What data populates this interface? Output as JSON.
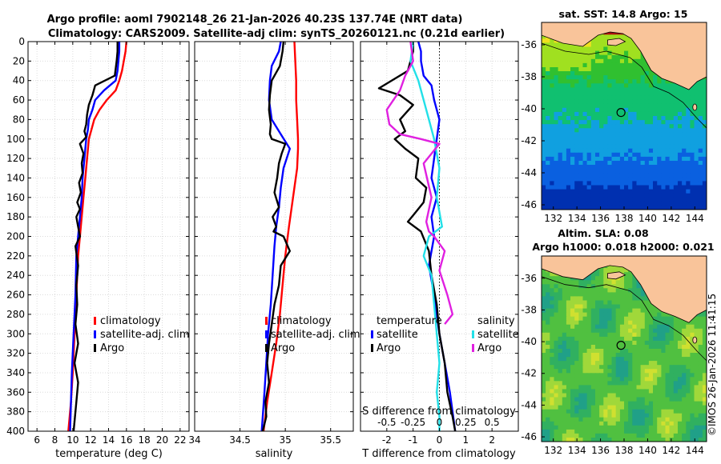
{
  "figure": {
    "title_line1": "Argo profile: aoml 7902148_26 21-Jan-2026 40.23S 137.74E (NRT data)",
    "title_line2": "Climatology: CARS2009. Satellite-adj clim: synTS_20260121.nc (0.21d earlier)",
    "credit": "©IMOS 26-Jan-2026 11:41:15"
  },
  "colors": {
    "climatology": "#ff0000",
    "satellite": "#0000ff",
    "argo": "#000000",
    "sat_salinity": "#22e0e8",
    "argo_salinity": "#e020e0",
    "land": "#f9c49a"
  },
  "chart_data": [
    {
      "id": "temperature",
      "type": "line",
      "xlabel": "temperature (deg C)",
      "xlim": [
        5,
        23
      ],
      "xticks": [
        6,
        8,
        10,
        12,
        14,
        16,
        18,
        20,
        22
      ],
      "ylim": [
        0,
        400
      ],
      "yticks": [
        0,
        20,
        40,
        60,
        80,
        100,
        120,
        140,
        160,
        180,
        200,
        220,
        240,
        260,
        280,
        300,
        320,
        340,
        360,
        380,
        400
      ],
      "legend": [
        "climatology",
        "satellite-adj. clim",
        "Argo"
      ],
      "series": [
        {
          "name": "climatology",
          "color": "#ff0000",
          "x": [
            16.0,
            15.9,
            15.7,
            15.5,
            15.2,
            14.8,
            13.8,
            13.0,
            12.4,
            12.1,
            11.8,
            11.6,
            11.4,
            11.2,
            11.0,
            10.8,
            10.6,
            10.4,
            10.2,
            10.0,
            9.8,
            9.5
          ],
          "depth": [
            0,
            10,
            20,
            30,
            40,
            50,
            60,
            70,
            80,
            90,
            100,
            120,
            140,
            160,
            180,
            200,
            220,
            260,
            300,
            340,
            370,
            400
          ]
        },
        {
          "name": "satellite-adj. clim",
          "color": "#0000ff",
          "x": [
            15.2,
            15.2,
            15.1,
            15.0,
            14.8,
            13.5,
            12.5,
            12.2,
            11.8,
            11.7,
            11.5,
            11.3,
            11.1,
            11.0,
            10.8,
            10.6,
            10.4,
            10.3,
            10.1,
            9.9,
            9.7
          ],
          "depth": [
            0,
            10,
            20,
            30,
            40,
            50,
            60,
            70,
            80,
            90,
            100,
            120,
            140,
            160,
            180,
            200,
            220,
            260,
            300,
            340,
            400
          ]
        },
        {
          "name": "Argo",
          "color": "#000000",
          "x": [
            15.0,
            15.0,
            14.9,
            14.7,
            12.5,
            12.2,
            11.8,
            11.6,
            11.5,
            11.3,
            11.5,
            10.8,
            11.2,
            11.0,
            11.1,
            10.7,
            10.9,
            10.5,
            10.8,
            10.4,
            10.6,
            10.8,
            10.3,
            10.6,
            10.4,
            10.5,
            10.3,
            10.6,
            10.2,
            10.6,
            10.4,
            10.1
          ],
          "depth": [
            0,
            10,
            20,
            35,
            45,
            55,
            65,
            75,
            85,
            92,
            98,
            105,
            115,
            125,
            135,
            145,
            155,
            165,
            172,
            180,
            190,
            200,
            210,
            230,
            250,
            270,
            290,
            310,
            330,
            350,
            370,
            400
          ]
        }
      ]
    },
    {
      "id": "salinity",
      "type": "line",
      "xlabel": "salinity",
      "xlim": [
        34,
        35.75
      ],
      "xticks": [
        34,
        34.5,
        35,
        35.5
      ],
      "ylim": [
        0,
        400
      ],
      "legend": [
        "climatology",
        "satellite-adj. clim",
        "Argo"
      ],
      "series": [
        {
          "name": "climatology",
          "color": "#ff0000",
          "x": [
            35.1,
            35.11,
            35.12,
            35.12,
            35.13,
            35.14,
            35.14,
            35.13,
            35.1,
            35.07,
            35.04,
            35.0,
            34.97,
            34.94,
            34.9,
            34.85,
            34.8,
            34.76
          ],
          "depth": [
            0,
            20,
            40,
            60,
            80,
            100,
            110,
            130,
            150,
            170,
            190,
            220,
            250,
            280,
            310,
            340,
            370,
            400
          ]
        },
        {
          "name": "satellite-adj. clim",
          "color": "#0000ff",
          "x": [
            34.95,
            34.93,
            34.85,
            34.83,
            34.82,
            34.85,
            34.95,
            35.05,
            34.98,
            34.95,
            34.93,
            34.9,
            34.88,
            34.86,
            34.84,
            34.81,
            34.79,
            34.77,
            34.74
          ],
          "depth": [
            0,
            10,
            25,
            40,
            60,
            80,
            95,
            110,
            130,
            150,
            170,
            190,
            210,
            240,
            270,
            300,
            330,
            360,
            400
          ]
        },
        {
          "name": "Argo",
          "color": "#000000",
          "x": [
            34.98,
            34.97,
            34.94,
            34.85,
            34.83,
            34.82,
            34.84,
            34.83,
            34.85,
            35.0,
            34.96,
            34.93,
            34.91,
            34.88,
            34.93,
            34.86,
            34.9,
            34.87,
            34.98,
            35.05,
            34.95,
            34.93,
            34.88,
            34.85,
            34.82,
            34.8,
            34.82,
            34.78,
            34.79,
            34.75
          ],
          "depth": [
            0,
            10,
            25,
            40,
            55,
            70,
            85,
            95,
            100,
            105,
            115,
            125,
            140,
            155,
            170,
            180,
            190,
            195,
            200,
            215,
            230,
            250,
            270,
            290,
            310,
            330,
            350,
            370,
            385,
            400
          ]
        }
      ]
    },
    {
      "id": "difference",
      "type": "line",
      "xlabel": "T difference from climatology",
      "xlabel_top": "S difference from climatology",
      "xlim": [
        -3,
        3
      ],
      "xticks": [
        -2,
        -1,
        0,
        1,
        2
      ],
      "xticks_top": [
        -0.5,
        -0.25,
        0,
        0.25,
        0.5
      ],
      "ylim": [
        0,
        400
      ],
      "legend_temperature": {
        "title": "temperature",
        "items": [
          "satellite",
          "Argo"
        ]
      },
      "legend_salinity": {
        "title": "salinity",
        "items": [
          "satellite",
          "Argo"
        ]
      },
      "series": [
        {
          "name": "T satellite",
          "color": "#0000ff",
          "x": [
            -0.8,
            -0.7,
            -0.7,
            -0.6,
            -0.3,
            -0.2,
            0.0,
            -0.1,
            -0.2,
            -0.3,
            -0.1,
            -0.3,
            -0.2,
            -0.4,
            -0.2,
            0.0,
            0.2,
            0.4,
            0.5,
            0.6
          ],
          "depth": [
            0,
            10,
            20,
            35,
            45,
            60,
            80,
            100,
            120,
            140,
            160,
            180,
            200,
            230,
            260,
            300,
            330,
            360,
            380,
            400
          ]
        },
        {
          "name": "T Argo",
          "color": "#000000",
          "x": [
            -1.0,
            -1.0,
            -1.2,
            -2.3,
            -1.5,
            -1.0,
            -1.5,
            -1.3,
            -1.7,
            -1.3,
            -0.8,
            -0.9,
            -0.5,
            -0.6,
            -0.9,
            -1.2,
            -0.7,
            -0.4,
            -0.3,
            -0.1,
            0.0,
            0.2,
            0.3,
            0.5,
            0.6
          ],
          "depth": [
            0,
            10,
            30,
            48,
            55,
            65,
            80,
            92,
            100,
            110,
            120,
            140,
            150,
            165,
            175,
            185,
            195,
            215,
            240,
            270,
            300,
            330,
            360,
            385,
            400
          ]
        },
        {
          "name": "S satellite",
          "color": "#22e0e8",
          "x": [
            -1.0,
            -1.1,
            -0.8,
            -0.6,
            -0.4,
            -0.2,
            0.0,
            -0.1,
            0.1,
            -0.4,
            -0.6,
            -0.3,
            -0.2,
            -0.1,
            0.0,
            -0.1,
            0.0,
            0.0
          ],
          "depth": [
            0,
            20,
            40,
            60,
            80,
            100,
            130,
            160,
            190,
            200,
            220,
            240,
            270,
            300,
            330,
            360,
            385,
            400
          ]
        },
        {
          "name": "S Argo",
          "color": "#e020e0",
          "x": [
            -1.1,
            -1.0,
            -1.3,
            -1.5,
            -2.0,
            -1.9,
            -1.5,
            -0.7,
            0.0,
            -0.6,
            -0.3,
            -0.5,
            -0.4,
            -0.2,
            0.2,
            0.0,
            0.3,
            0.5,
            0.2
          ],
          "depth": [
            0,
            20,
            35,
            50,
            70,
            85,
            95,
            100,
            105,
            125,
            160,
            185,
            195,
            200,
            215,
            235,
            260,
            280,
            290
          ]
        }
      ]
    },
    {
      "id": "sst_map",
      "type": "heatmap",
      "title": "sat. SST: 14.8 Argo: 15",
      "xlim": [
        131,
        145
      ],
      "ylim": [
        -46.3,
        -34.6
      ],
      "xticks": [
        132,
        134,
        136,
        138,
        140,
        142,
        144
      ],
      "yticks": [
        -36,
        -38,
        -40,
        -42,
        -44,
        -46
      ],
      "argo_position": [
        137.74,
        -40.23
      ]
    },
    {
      "id": "sla_map",
      "type": "heatmap",
      "title_line1": "Altim. SLA: 0.08",
      "title_line2": "Argo h1000: 0.018 h2000: 0.021",
      "xlim": [
        131,
        145
      ],
      "ylim": [
        -46.3,
        -34.6
      ],
      "xticks": [
        132,
        134,
        136,
        138,
        140,
        142,
        144
      ],
      "yticks": [
        -36,
        -38,
        -40,
        -42,
        -44,
        -46
      ],
      "argo_position": [
        137.74,
        -40.23
      ]
    }
  ]
}
